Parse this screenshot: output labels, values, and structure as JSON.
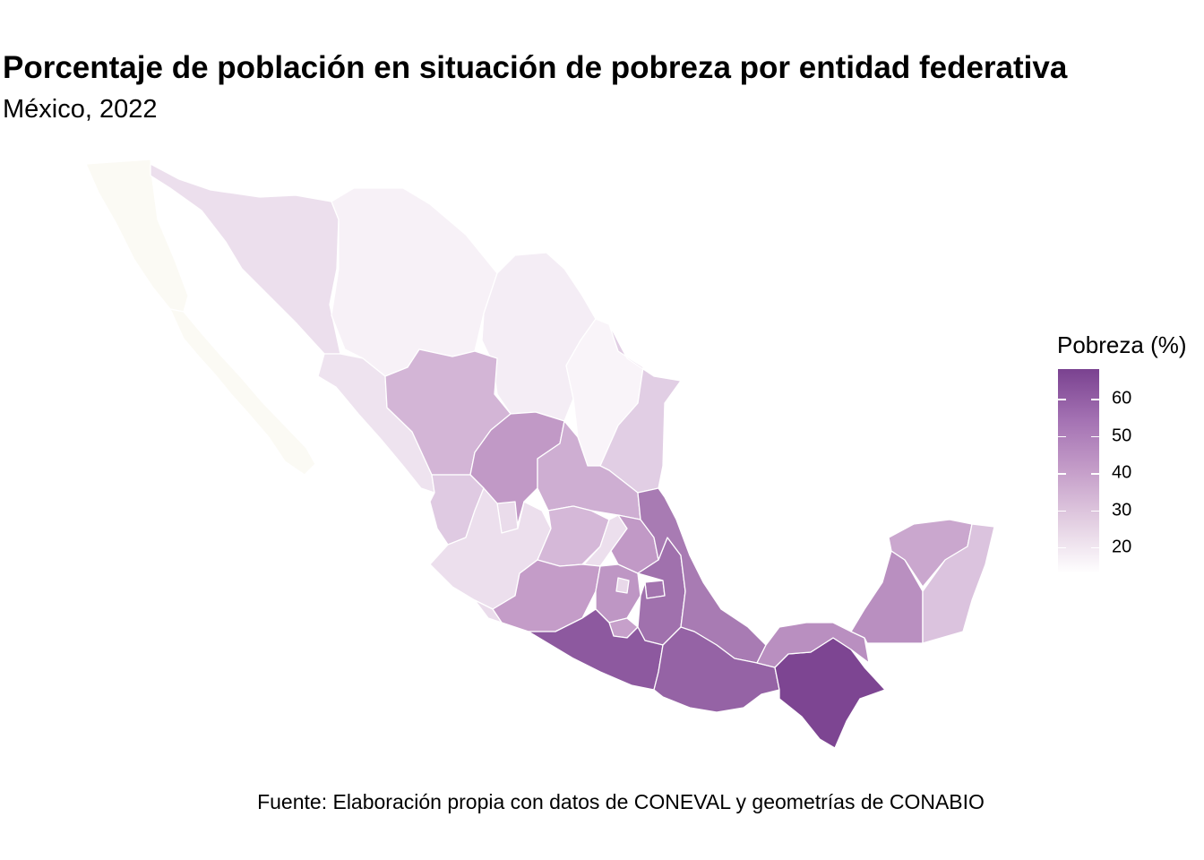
{
  "title": "Porcentaje de población en situación de pobreza por entidad federativa",
  "subtitle": "México, 2022",
  "caption": "Fuente: Elaboración propia con datos de CONEVAL y geometrías de CONABIO",
  "legend": {
    "title": "Pobreza (%)",
    "ticks": [
      "20",
      "30",
      "40",
      "50",
      "60"
    ],
    "tick_values": [
      20,
      30,
      40,
      50,
      60
    ],
    "range": [
      13,
      68
    ],
    "colors": {
      "low": "#ffffff",
      "mid": "#c59ec9",
      "high": "#7a4290"
    }
  },
  "chart_data": {
    "type": "choropleth",
    "variable": "Pobreza (%)",
    "regions": [
      {
        "name": "Baja California",
        "value": 13
      },
      {
        "name": "Baja California Sur",
        "value": 13
      },
      {
        "name": "Sonora",
        "value": 22
      },
      {
        "name": "Chihuahua",
        "value": 17
      },
      {
        "name": "Coahuila",
        "value": 18
      },
      {
        "name": "Nuevo León",
        "value": 16
      },
      {
        "name": "Tamaulipas",
        "value": 27
      },
      {
        "name": "Sinaloa",
        "value": 21
      },
      {
        "name": "Durango",
        "value": 34
      },
      {
        "name": "Zacatecas",
        "value": 42
      },
      {
        "name": "San Luis Potosí",
        "value": 36
      },
      {
        "name": "Nayarit",
        "value": 28
      },
      {
        "name": "Aguascalientes",
        "value": 23
      },
      {
        "name": "Jalisco",
        "value": 22
      },
      {
        "name": "Guanajuato",
        "value": 33
      },
      {
        "name": "Querétaro",
        "value": 22
      },
      {
        "name": "Hidalgo",
        "value": 42
      },
      {
        "name": "Michoacán",
        "value": 41
      },
      {
        "name": "Colima",
        "value": 23
      },
      {
        "name": "Estado de México",
        "value": 43
      },
      {
        "name": "Ciudad de México",
        "value": 24
      },
      {
        "name": "Morelos",
        "value": 40
      },
      {
        "name": "Tlaxcala",
        "value": 53
      },
      {
        "name": "Puebla",
        "value": 54
      },
      {
        "name": "Veracruz",
        "value": 51
      },
      {
        "name": "Guerrero",
        "value": 61
      },
      {
        "name": "Oaxaca",
        "value": 58
      },
      {
        "name": "Chiapas",
        "value": 67
      },
      {
        "name": "Tabasco",
        "value": 45
      },
      {
        "name": "Campeche",
        "value": 45
      },
      {
        "name": "Yucatán",
        "value": 38
      },
      {
        "name": "Quintana Roo",
        "value": 30
      }
    ]
  }
}
